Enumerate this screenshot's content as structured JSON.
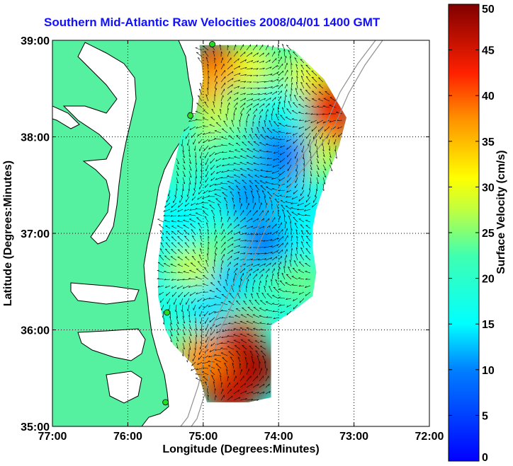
{
  "title": "Southern Mid-Atlantic Raw Velocities 2008/04/01 1400 GMT",
  "colors": {
    "land": "#55f0a0",
    "coast": "#000000",
    "vectors": "#000000",
    "stations": "#22dd22",
    "bathymetry": "#909090",
    "title": "#1010ff"
  },
  "chart_data": {
    "type": "heatmap",
    "title": "Southern Mid-Atlantic Raw Velocities 2008/04/01 1400 GMT",
    "xlabel": "Longitude (Degrees:Minutes)",
    "ylabel": "Latitude (Degrees:Minutes)",
    "xlim": [
      -77,
      -72
    ],
    "ylim": [
      35,
      39
    ],
    "x_ticks": [
      {
        "value": -77,
        "label": "77:00"
      },
      {
        "value": -76,
        "label": "76:00"
      },
      {
        "value": -75,
        "label": "75:00"
      },
      {
        "value": -74,
        "label": "74:00"
      },
      {
        "value": -73,
        "label": "73:00"
      },
      {
        "value": -72,
        "label": "72:00"
      }
    ],
    "y_ticks": [
      {
        "value": 35,
        "label": "35:00"
      },
      {
        "value": 36,
        "label": "36:00"
      },
      {
        "value": 37,
        "label": "37:00"
      },
      {
        "value": 38,
        "label": "38:00"
      },
      {
        "value": 39,
        "label": "39:00"
      }
    ],
    "grid": true,
    "colorbar": {
      "label": "Surface Velocity (cm/s)",
      "min": 0,
      "max": 50,
      "ticks": [
        {
          "value": 0,
          "label": "0"
        },
        {
          "value": 5,
          "label": "5"
        },
        {
          "value": 10,
          "label": "10"
        },
        {
          "value": 15,
          "label": "15"
        },
        {
          "value": 20,
          "label": "20"
        },
        {
          "value": 25,
          "label": "25"
        },
        {
          "value": 30,
          "label": "30"
        },
        {
          "value": 35,
          "label": "35"
        },
        {
          "value": 40,
          "label": "40"
        },
        {
          "value": 45,
          "label": "45"
        },
        {
          "value": 50,
          "label": "50"
        }
      ]
    },
    "coverage_outline": [
      [
        -75.05,
        38.95
      ],
      [
        -74.6,
        38.95
      ],
      [
        -74.2,
        38.95
      ],
      [
        -73.8,
        38.9
      ],
      [
        -73.4,
        38.6
      ],
      [
        -73.1,
        38.2
      ],
      [
        -73.2,
        37.9
      ],
      [
        -73.35,
        37.6
      ],
      [
        -73.5,
        37.25
      ],
      [
        -73.55,
        37.05
      ],
      [
        -73.55,
        36.85
      ],
      [
        -73.5,
        36.6
      ],
      [
        -73.55,
        36.35
      ],
      [
        -73.8,
        36.2
      ],
      [
        -74.1,
        36.05
      ],
      [
        -74.1,
        35.3
      ],
      [
        -74.4,
        35.25
      ],
      [
        -74.95,
        35.25
      ],
      [
        -75.05,
        35.5
      ],
      [
        -75.15,
        35.65
      ],
      [
        -75.4,
        35.85
      ],
      [
        -75.5,
        36.0
      ],
      [
        -75.6,
        36.35
      ],
      [
        -75.6,
        36.7
      ],
      [
        -75.55,
        37.0
      ],
      [
        -75.5,
        37.3
      ],
      [
        -75.4,
        37.65
      ],
      [
        -75.3,
        38.0
      ],
      [
        -75.1,
        38.25
      ],
      [
        -75.0,
        38.6
      ]
    ],
    "speed_field": [
      {
        "lon": -74.85,
        "lat": 38.75,
        "speed": 44
      },
      {
        "lon": -74.6,
        "lat": 38.7,
        "speed": 42
      },
      {
        "lon": -74.9,
        "lat": 38.5,
        "speed": 36
      },
      {
        "lon": -74.3,
        "lat": 38.75,
        "speed": 30
      },
      {
        "lon": -73.9,
        "lat": 38.75,
        "speed": 24
      },
      {
        "lon": -73.55,
        "lat": 38.6,
        "speed": 30
      },
      {
        "lon": -73.3,
        "lat": 38.35,
        "speed": 44
      },
      {
        "lon": -73.3,
        "lat": 38.05,
        "speed": 42
      },
      {
        "lon": -73.5,
        "lat": 37.8,
        "speed": 28
      },
      {
        "lon": -74.5,
        "lat": 38.3,
        "speed": 24
      },
      {
        "lon": -74.0,
        "lat": 38.3,
        "speed": 17
      },
      {
        "lon": -74.2,
        "lat": 37.9,
        "speed": 11
      },
      {
        "lon": -73.9,
        "lat": 37.8,
        "speed": 10
      },
      {
        "lon": -74.8,
        "lat": 38.1,
        "speed": 28
      },
      {
        "lon": -74.6,
        "lat": 37.9,
        "speed": 22
      },
      {
        "lon": -75.2,
        "lat": 37.7,
        "speed": 23
      },
      {
        "lon": -74.9,
        "lat": 37.5,
        "speed": 18
      },
      {
        "lon": -74.4,
        "lat": 37.4,
        "speed": 11
      },
      {
        "lon": -73.9,
        "lat": 37.3,
        "speed": 13
      },
      {
        "lon": -73.7,
        "lat": 37.0,
        "speed": 15
      },
      {
        "lon": -74.2,
        "lat": 36.9,
        "speed": 10
      },
      {
        "lon": -75.3,
        "lat": 37.1,
        "speed": 15
      },
      {
        "lon": -74.8,
        "lat": 36.8,
        "speed": 24
      },
      {
        "lon": -75.2,
        "lat": 36.6,
        "speed": 28
      },
      {
        "lon": -74.6,
        "lat": 36.5,
        "speed": 13
      },
      {
        "lon": -74.1,
        "lat": 36.45,
        "speed": 20
      },
      {
        "lon": -73.7,
        "lat": 36.5,
        "speed": 24
      },
      {
        "lon": -75.4,
        "lat": 36.3,
        "speed": 18
      },
      {
        "lon": -74.9,
        "lat": 36.2,
        "speed": 14
      },
      {
        "lon": -74.4,
        "lat": 36.1,
        "speed": 22
      },
      {
        "lon": -75.2,
        "lat": 35.8,
        "speed": 24
      },
      {
        "lon": -74.5,
        "lat": 35.9,
        "speed": 46
      },
      {
        "lon": -74.3,
        "lat": 35.6,
        "speed": 48
      },
      {
        "lon": -74.8,
        "lat": 35.5,
        "speed": 44
      },
      {
        "lon": -74.6,
        "lat": 35.35,
        "speed": 46
      },
      {
        "lon": -75.0,
        "lat": 35.7,
        "speed": 38
      }
    ],
    "stations": [
      {
        "lon": -74.88,
        "lat": 38.96
      },
      {
        "lon": -75.17,
        "lat": 38.22
      },
      {
        "lon": -75.48,
        "lat": 36.18
      },
      {
        "lon": -75.5,
        "lat": 35.25
      }
    ]
  }
}
